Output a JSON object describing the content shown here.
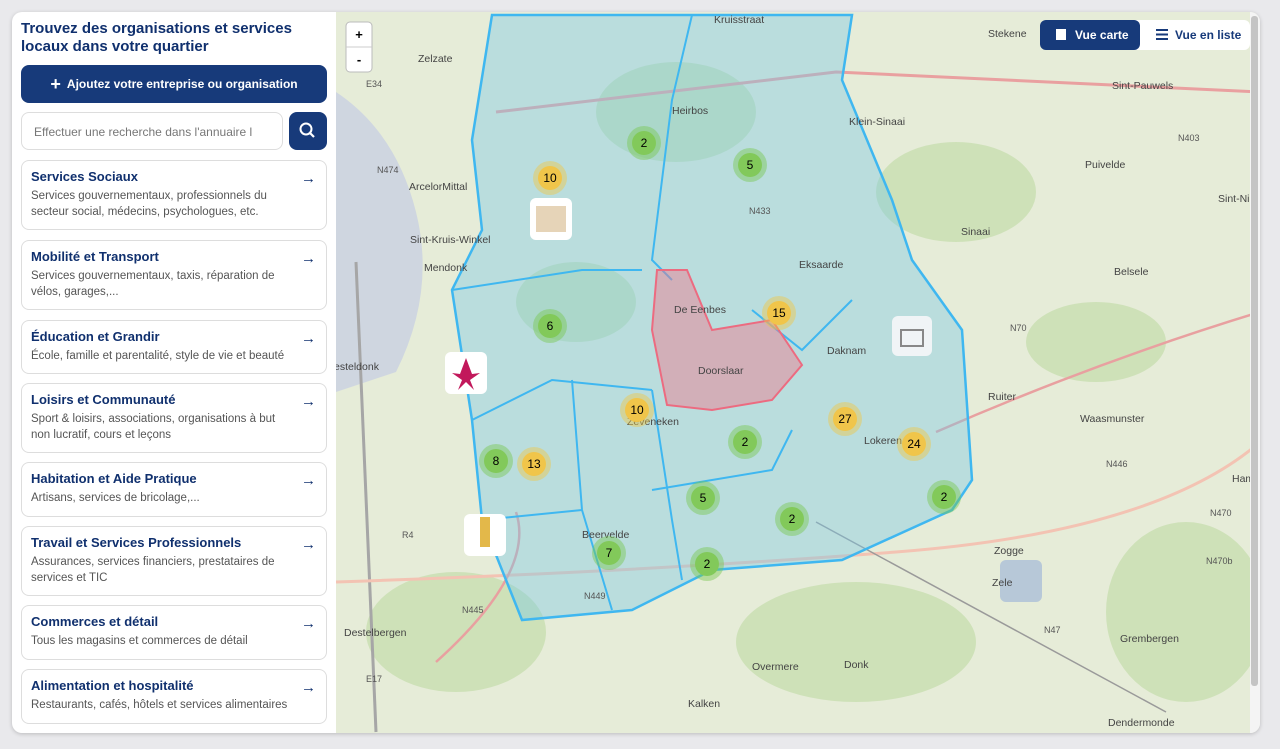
{
  "header": {
    "title": "Trouvez des organisations et services locaux dans votre quartier"
  },
  "add_button": {
    "label": "Ajoutez votre entreprise ou organisation"
  },
  "search": {
    "placeholder": "Effectuer une recherche dans l'annuaire l"
  },
  "categories": [
    {
      "title": "Services Sociaux",
      "description": "Services gouvernementaux, professionnels du secteur social, médecins, psychologues, etc."
    },
    {
      "title": "Mobilité et Transport",
      "description": "Services gouvernementaux, taxis, réparation de vélos, garages,..."
    },
    {
      "title": "Éducation et Grandir",
      "description": "École, famille et parentalité, style de vie et beauté"
    },
    {
      "title": "Loisirs et Communauté",
      "description": "Sport & loisirs, associations, organisations à but non lucratif, cours et leçons"
    },
    {
      "title": "Habitation et Aide Pratique",
      "description": "Artisans, services de bricolage,..."
    },
    {
      "title": "Travail et Services Professionnels",
      "description": "Assurances, services financiers, prestataires de services et TIC"
    },
    {
      "title": "Commerces et détail",
      "description": "Tous les magasins et commerces de détail"
    },
    {
      "title": "Alimentation et hospitalité",
      "description": "Restaurants, cafés, hôtels et services alimentaires"
    }
  ],
  "map": {
    "zoom_in": "+",
    "zoom_out": "-",
    "view_toggle": {
      "map": "Vue carte",
      "list": "Vue en liste"
    },
    "clusters": [
      2,
      5,
      10,
      6,
      15,
      10,
      27,
      24,
      2,
      8,
      13,
      5,
      2,
      2,
      7,
      2
    ],
    "places": [
      "Stekene",
      "Zelzate",
      "Kruisstraat",
      "Sint-Pauwels",
      "Heirbos",
      "Klein-Sinaai",
      "N403",
      "Puivelde",
      "N474",
      "ArcelorMittal",
      "N433",
      "Sint-Ni",
      "Sint-Kruis-Winkel",
      "Sinaai",
      "Mendonk",
      "Eksaarde",
      "Belsele",
      "De Eenbes",
      "N70",
      "Daknam",
      "Doorslaar",
      "esteldonk",
      "Ruiter",
      "Waasmunster",
      "Zeveneken",
      "Lokeren",
      "N446",
      "Hamn",
      "Beervelde",
      "Zogge",
      "N470b",
      "N470",
      "Destelbergen",
      "N445",
      "N449",
      "N47",
      "Grembergen",
      "Zele",
      "E17",
      "Overmere",
      "Donk",
      "Kalken",
      "R4",
      "E34",
      "Dendermonde"
    ]
  }
}
